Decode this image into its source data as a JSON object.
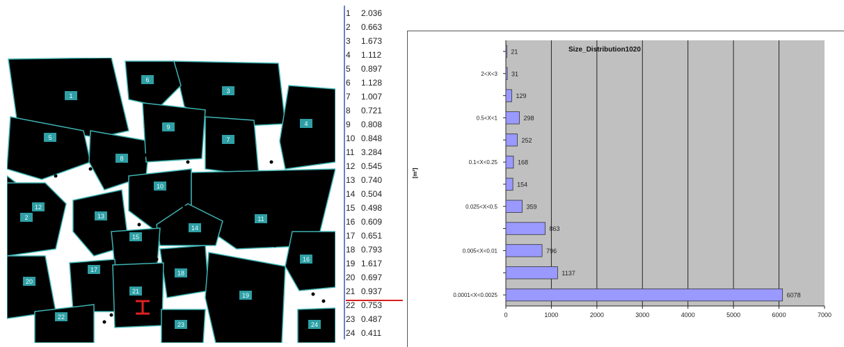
{
  "table": {
    "rows": [
      {
        "id": "1",
        "value": "2.036"
      },
      {
        "id": "2",
        "value": "0.663"
      },
      {
        "id": "3",
        "value": "1.673"
      },
      {
        "id": "4",
        "value": "1.112"
      },
      {
        "id": "5",
        "value": "0.897"
      },
      {
        "id": "6",
        "value": "1.128"
      },
      {
        "id": "7",
        "value": "1.007"
      },
      {
        "id": "8",
        "value": "0.721"
      },
      {
        "id": "9",
        "value": "0.808"
      },
      {
        "id": "10",
        "value": "0.848"
      },
      {
        "id": "11",
        "value": "3.284"
      },
      {
        "id": "12",
        "value": "0.545"
      },
      {
        "id": "13",
        "value": "0.740"
      },
      {
        "id": "14",
        "value": "0.504"
      },
      {
        "id": "15",
        "value": "0.498"
      },
      {
        "id": "16",
        "value": "0.609"
      },
      {
        "id": "17",
        "value": "0.651"
      },
      {
        "id": "18",
        "value": "0.793"
      },
      {
        "id": "19",
        "value": "1.617"
      },
      {
        "id": "20",
        "value": "0.697"
      },
      {
        "id": "21",
        "value": "0.937"
      },
      {
        "id": "22",
        "value": "0.753"
      },
      {
        "id": "23",
        "value": "0.487"
      },
      {
        "id": "24",
        "value": "0.411"
      }
    ]
  },
  "segmentation": {
    "labels": [
      "1",
      "2",
      "3",
      "4",
      "5",
      "6",
      "7",
      "8",
      "9",
      "10",
      "11",
      "12",
      "13",
      "14",
      "15",
      "16",
      "17",
      "18",
      "19",
      "20",
      "21",
      "22",
      "23",
      "24"
    ]
  },
  "chart_data": {
    "type": "bar",
    "orientation": "horizontal",
    "title": "Size_Distribution1020",
    "ylabel": "[m²]",
    "xlabel": "",
    "xlim": [
      0,
      7000
    ],
    "xticks": [
      0,
      1000,
      2000,
      3000,
      4000,
      5000,
      6000,
      7000
    ],
    "grid": true,
    "plot_background": "#c0c0c0",
    "bar_color": "#9999ff",
    "categories_bottom_to_top": [
      "0.0001<X<0.0025",
      "",
      "0.005<X<0.01",
      "",
      "0.025<X<0.5",
      "",
      "0.1<X<0.25",
      "",
      "0.5<X<1",
      "",
      "2<X<3",
      ""
    ],
    "values_bottom_to_top": [
      6078,
      1137,
      796,
      863,
      359,
      154,
      168,
      252,
      298,
      129,
      31,
      21
    ]
  }
}
